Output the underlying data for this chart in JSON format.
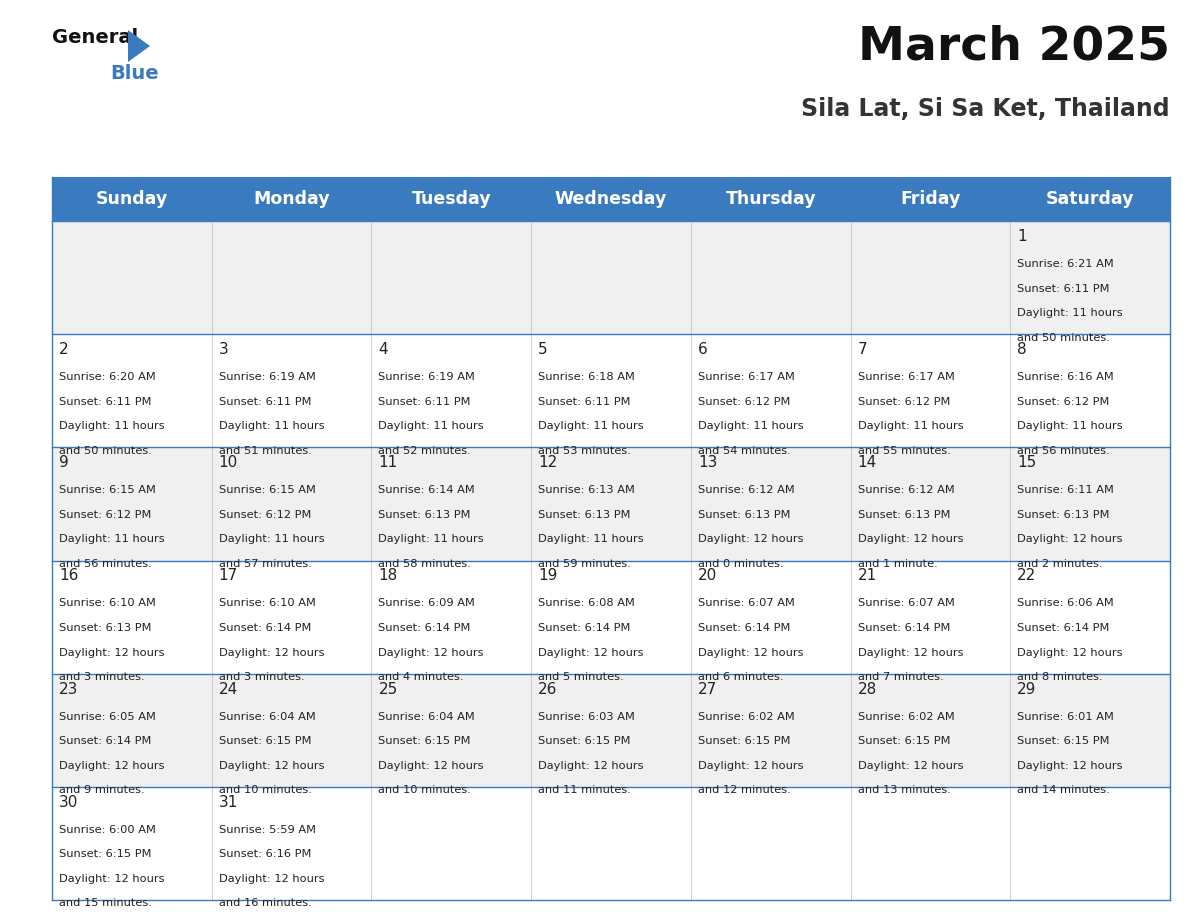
{
  "title": "March 2025",
  "subtitle": "Sila Lat, Si Sa Ket, Thailand",
  "header_bg": "#3a7abf",
  "header_text": "#ffffff",
  "days_of_week": [
    "Sunday",
    "Monday",
    "Tuesday",
    "Wednesday",
    "Thursday",
    "Friday",
    "Saturday"
  ],
  "row0_bg": "#f0f0f0",
  "row1_bg": "#ffffff",
  "row2_bg": "#f0f0f0",
  "row3_bg": "#ffffff",
  "row4_bg": "#f0f0f0",
  "row5_bg": "#ffffff",
  "cell_text_color": "#222222",
  "border_color": "#3a7abf",
  "calendar_data": [
    [
      null,
      null,
      null,
      null,
      null,
      null,
      {
        "day": "1",
        "sunrise": "6:21 AM",
        "sunset": "6:11 PM",
        "daylight_h": "11 hours",
        "daylight_m": "and 50 minutes."
      }
    ],
    [
      {
        "day": "2",
        "sunrise": "6:20 AM",
        "sunset": "6:11 PM",
        "daylight_h": "11 hours",
        "daylight_m": "and 50 minutes."
      },
      {
        "day": "3",
        "sunrise": "6:19 AM",
        "sunset": "6:11 PM",
        "daylight_h": "11 hours",
        "daylight_m": "and 51 minutes."
      },
      {
        "day": "4",
        "sunrise": "6:19 AM",
        "sunset": "6:11 PM",
        "daylight_h": "11 hours",
        "daylight_m": "and 52 minutes."
      },
      {
        "day": "5",
        "sunrise": "6:18 AM",
        "sunset": "6:11 PM",
        "daylight_h": "11 hours",
        "daylight_m": "and 53 minutes."
      },
      {
        "day": "6",
        "sunrise": "6:17 AM",
        "sunset": "6:12 PM",
        "daylight_h": "11 hours",
        "daylight_m": "and 54 minutes."
      },
      {
        "day": "7",
        "sunrise": "6:17 AM",
        "sunset": "6:12 PM",
        "daylight_h": "11 hours",
        "daylight_m": "and 55 minutes."
      },
      {
        "day": "8",
        "sunrise": "6:16 AM",
        "sunset": "6:12 PM",
        "daylight_h": "11 hours",
        "daylight_m": "and 56 minutes."
      }
    ],
    [
      {
        "day": "9",
        "sunrise": "6:15 AM",
        "sunset": "6:12 PM",
        "daylight_h": "11 hours",
        "daylight_m": "and 56 minutes."
      },
      {
        "day": "10",
        "sunrise": "6:15 AM",
        "sunset": "6:12 PM",
        "daylight_h": "11 hours",
        "daylight_m": "and 57 minutes."
      },
      {
        "day": "11",
        "sunrise": "6:14 AM",
        "sunset": "6:13 PM",
        "daylight_h": "11 hours",
        "daylight_m": "and 58 minutes."
      },
      {
        "day": "12",
        "sunrise": "6:13 AM",
        "sunset": "6:13 PM",
        "daylight_h": "11 hours",
        "daylight_m": "and 59 minutes."
      },
      {
        "day": "13",
        "sunrise": "6:12 AM",
        "sunset": "6:13 PM",
        "daylight_h": "12 hours",
        "daylight_m": "and 0 minutes."
      },
      {
        "day": "14",
        "sunrise": "6:12 AM",
        "sunset": "6:13 PM",
        "daylight_h": "12 hours",
        "daylight_m": "and 1 minute."
      },
      {
        "day": "15",
        "sunrise": "6:11 AM",
        "sunset": "6:13 PM",
        "daylight_h": "12 hours",
        "daylight_m": "and 2 minutes."
      }
    ],
    [
      {
        "day": "16",
        "sunrise": "6:10 AM",
        "sunset": "6:13 PM",
        "daylight_h": "12 hours",
        "daylight_m": "and 3 minutes."
      },
      {
        "day": "17",
        "sunrise": "6:10 AM",
        "sunset": "6:14 PM",
        "daylight_h": "12 hours",
        "daylight_m": "and 3 minutes."
      },
      {
        "day": "18",
        "sunrise": "6:09 AM",
        "sunset": "6:14 PM",
        "daylight_h": "12 hours",
        "daylight_m": "and 4 minutes."
      },
      {
        "day": "19",
        "sunrise": "6:08 AM",
        "sunset": "6:14 PM",
        "daylight_h": "12 hours",
        "daylight_m": "and 5 minutes."
      },
      {
        "day": "20",
        "sunrise": "6:07 AM",
        "sunset": "6:14 PM",
        "daylight_h": "12 hours",
        "daylight_m": "and 6 minutes."
      },
      {
        "day": "21",
        "sunrise": "6:07 AM",
        "sunset": "6:14 PM",
        "daylight_h": "12 hours",
        "daylight_m": "and 7 minutes."
      },
      {
        "day": "22",
        "sunrise": "6:06 AM",
        "sunset": "6:14 PM",
        "daylight_h": "12 hours",
        "daylight_m": "and 8 minutes."
      }
    ],
    [
      {
        "day": "23",
        "sunrise": "6:05 AM",
        "sunset": "6:14 PM",
        "daylight_h": "12 hours",
        "daylight_m": "and 9 minutes."
      },
      {
        "day": "24",
        "sunrise": "6:04 AM",
        "sunset": "6:15 PM",
        "daylight_h": "12 hours",
        "daylight_m": "and 10 minutes."
      },
      {
        "day": "25",
        "sunrise": "6:04 AM",
        "sunset": "6:15 PM",
        "daylight_h": "12 hours",
        "daylight_m": "and 10 minutes."
      },
      {
        "day": "26",
        "sunrise": "6:03 AM",
        "sunset": "6:15 PM",
        "daylight_h": "12 hours",
        "daylight_m": "and 11 minutes."
      },
      {
        "day": "27",
        "sunrise": "6:02 AM",
        "sunset": "6:15 PM",
        "daylight_h": "12 hours",
        "daylight_m": "and 12 minutes."
      },
      {
        "day": "28",
        "sunrise": "6:02 AM",
        "sunset": "6:15 PM",
        "daylight_h": "12 hours",
        "daylight_m": "and 13 minutes."
      },
      {
        "day": "29",
        "sunrise": "6:01 AM",
        "sunset": "6:15 PM",
        "daylight_h": "12 hours",
        "daylight_m": "and 14 minutes."
      }
    ],
    [
      {
        "day": "30",
        "sunrise": "6:00 AM",
        "sunset": "6:15 PM",
        "daylight_h": "12 hours",
        "daylight_m": "and 15 minutes."
      },
      {
        "day": "31",
        "sunrise": "5:59 AM",
        "sunset": "6:16 PM",
        "daylight_h": "12 hours",
        "daylight_m": "and 16 minutes."
      },
      null,
      null,
      null,
      null,
      null
    ]
  ]
}
